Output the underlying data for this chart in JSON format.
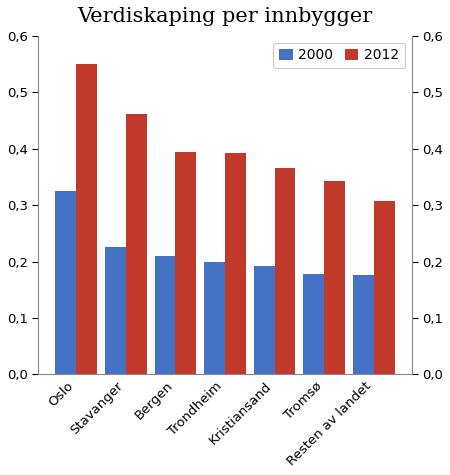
{
  "title": "Verdiskaping per innbygger",
  "categories": [
    "Oslo",
    "Stavanger",
    "Bergen",
    "Trondheim",
    "Kristiansand",
    "Tromsø",
    "Resten av landet"
  ],
  "values_2000": [
    0.325,
    0.225,
    0.21,
    0.2,
    0.193,
    0.178,
    0.177
  ],
  "values_2012": [
    0.55,
    0.462,
    0.395,
    0.393,
    0.365,
    0.343,
    0.308
  ],
  "color_2000": "#4472C4",
  "color_2012": "#C0392B",
  "ylim": [
    0.0,
    0.6
  ],
  "yticks": [
    0.0,
    0.1,
    0.2,
    0.3,
    0.4,
    0.5,
    0.6
  ],
  "legend_labels": [
    "2000",
    "2012"
  ],
  "bar_width": 0.42,
  "figsize": [
    4.5,
    4.75
  ],
  "dpi": 100
}
